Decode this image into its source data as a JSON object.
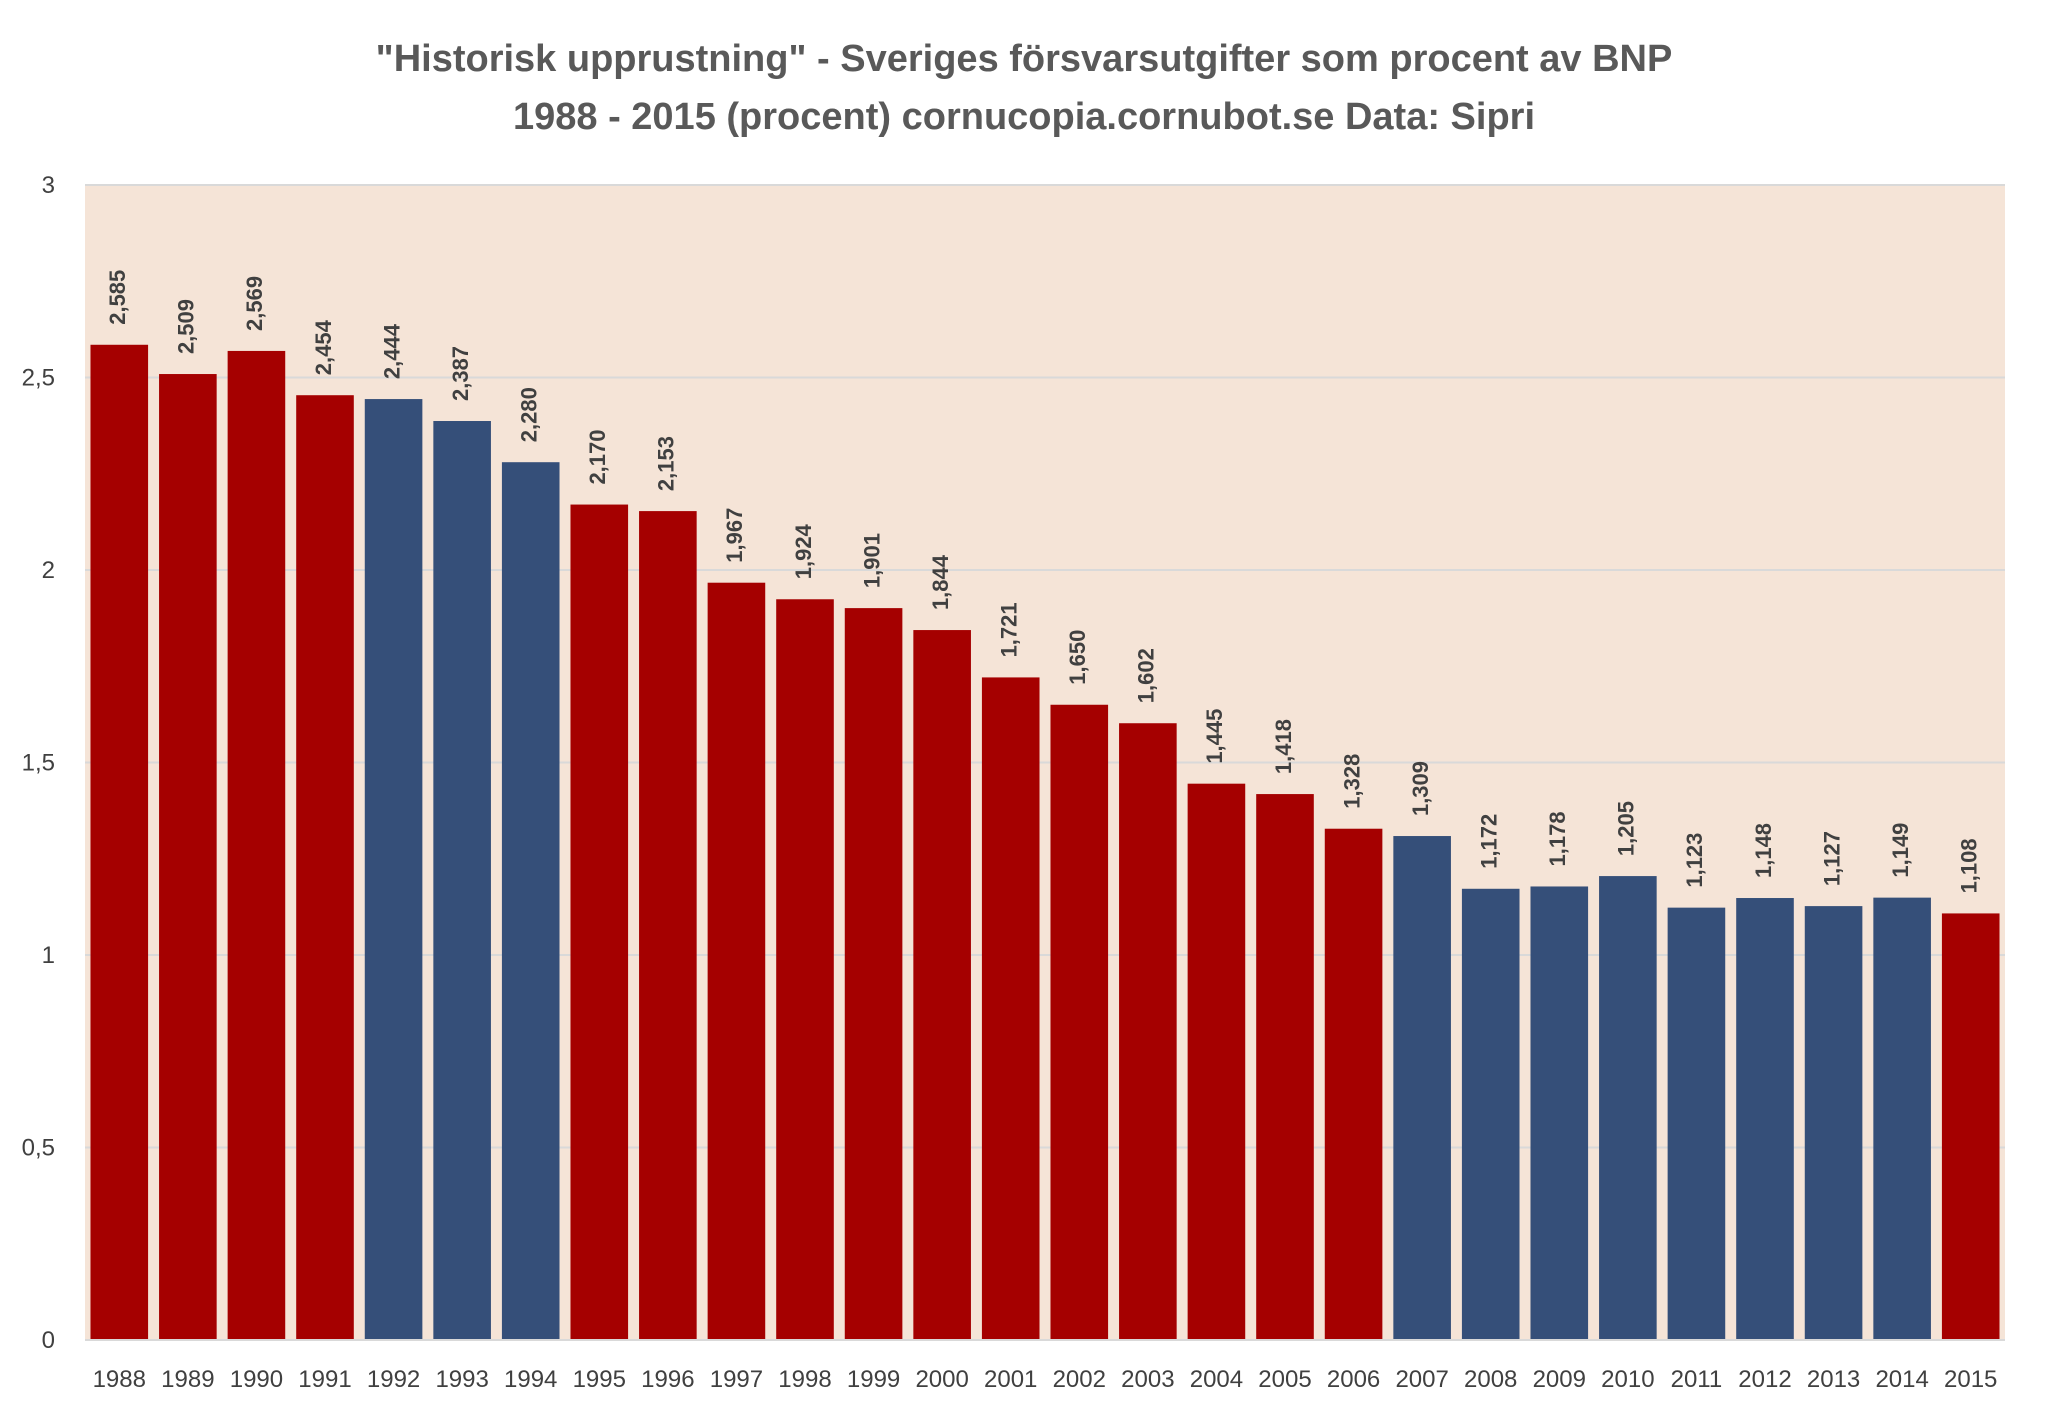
{
  "chart_data": {
    "type": "bar",
    "title_lines": [
      "\"Historisk upprustning\" - Sveriges försvarsutgifter som procent av BNP",
      "1988 - 2015 (procent) cornucopia.cornubot.se Data: Sipri"
    ],
    "categories": [
      "1988",
      "1989",
      "1990",
      "1991",
      "1992",
      "1993",
      "1994",
      "1995",
      "1996",
      "1997",
      "1998",
      "1999",
      "2000",
      "2001",
      "2002",
      "2003",
      "2004",
      "2005",
      "2006",
      "2007",
      "2008",
      "2009",
      "2010",
      "2011",
      "2012",
      "2013",
      "2014",
      "2015"
    ],
    "values": [
      2.585,
      2.509,
      2.569,
      2.454,
      2.444,
      2.387,
      2.28,
      2.17,
      2.153,
      1.967,
      1.924,
      1.901,
      1.844,
      1.721,
      1.65,
      1.602,
      1.445,
      1.418,
      1.328,
      1.309,
      1.172,
      1.178,
      1.205,
      1.123,
      1.148,
      1.127,
      1.149,
      1.108
    ],
    "value_labels": [
      "2,585",
      "2,509",
      "2,569",
      "2,454",
      "2,444",
      "2,387",
      "2,280",
      "2,170",
      "2,153",
      "1,967",
      "1,924",
      "1,901",
      "1,844",
      "1,721",
      "1,650",
      "1,602",
      "1,445",
      "1,418",
      "1,328",
      "1,309",
      "1,172",
      "1,178",
      "1,205",
      "1,123",
      "1,148",
      "1,127",
      "1,149",
      "1,108"
    ],
    "bar_colors": [
      "red",
      "red",
      "red",
      "red",
      "blue",
      "blue",
      "blue",
      "red",
      "red",
      "red",
      "red",
      "red",
      "red",
      "red",
      "red",
      "red",
      "red",
      "red",
      "red",
      "blue",
      "blue",
      "blue",
      "blue",
      "blue",
      "blue",
      "blue",
      "blue",
      "red"
    ],
    "ylim": [
      0,
      3
    ],
    "yticks": [
      0,
      0.5,
      1,
      1.5,
      2,
      2.5,
      3
    ],
    "ytick_labels": [
      "0",
      "0,5",
      "1",
      "1,5",
      "2",
      "2,5",
      "3"
    ],
    "xlabel": "",
    "ylabel": "",
    "grid": true,
    "legend": "none"
  },
  "colors": {
    "red": "#A50000",
    "blue": "#354F79",
    "plot_background": "#F5E4D7",
    "gridline": "#D9D9D9",
    "text": "#404040",
    "title": "#595959"
  }
}
